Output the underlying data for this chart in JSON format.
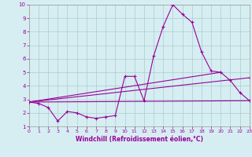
{
  "xlabel": "Windchill (Refroidissement éolien,°C)",
  "background_color": "#d6eef2",
  "grid_color": "#aacccc",
  "line_color": "#990099",
  "xlim": [
    0,
    23
  ],
  "ylim": [
    1,
    10
  ],
  "xticks": [
    0,
    1,
    2,
    3,
    4,
    5,
    6,
    7,
    8,
    9,
    10,
    11,
    12,
    13,
    14,
    15,
    16,
    17,
    18,
    19,
    20,
    21,
    22,
    23
  ],
  "yticks": [
    1,
    2,
    3,
    4,
    5,
    6,
    7,
    8,
    9,
    10
  ],
  "series1_x": [
    0,
    1,
    2,
    3,
    4,
    5,
    6,
    7,
    8,
    9,
    10,
    11,
    12,
    13,
    14,
    15,
    16,
    17,
    18,
    19,
    20,
    21,
    22,
    23
  ],
  "series1_y": [
    2.8,
    2.7,
    2.4,
    1.4,
    2.1,
    2.0,
    1.7,
    1.6,
    1.7,
    1.8,
    4.7,
    4.7,
    2.9,
    6.2,
    8.4,
    10.0,
    9.3,
    8.7,
    6.5,
    5.1,
    5.0,
    4.4,
    3.5,
    2.9
  ],
  "series2_x": [
    0,
    23
  ],
  "series2_y": [
    2.8,
    2.9
  ],
  "series3_x": [
    0,
    20
  ],
  "series3_y": [
    2.8,
    5.0
  ],
  "series4_x": [
    0,
    23
  ],
  "series4_y": [
    2.8,
    4.6
  ]
}
